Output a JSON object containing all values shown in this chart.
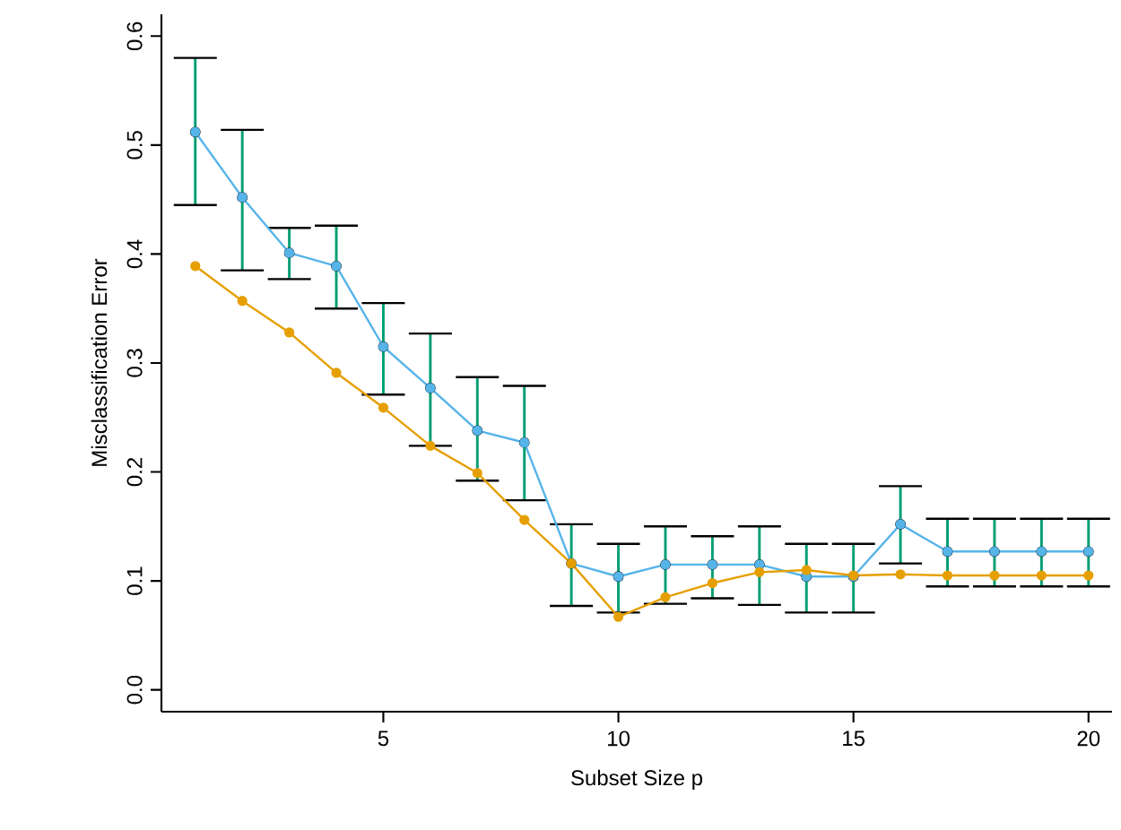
{
  "chart_data": {
    "type": "line",
    "xlabel": "Subset Size p",
    "ylabel": "Misclassification Error",
    "x": [
      1,
      2,
      3,
      4,
      5,
      6,
      7,
      8,
      9,
      10,
      11,
      12,
      13,
      14,
      15,
      16,
      17,
      18,
      19,
      20
    ],
    "series": [
      {
        "color": "#56b4e9",
        "values": [
          0.512,
          0.452,
          0.401,
          0.389,
          0.315,
          0.277,
          0.238,
          0.227,
          0.116,
          0.104,
          0.115,
          0.115,
          0.115,
          0.104,
          0.104,
          0.152,
          0.127,
          0.127,
          0.127,
          0.127
        ],
        "errors": [
          [
            0.445,
            0.58
          ],
          [
            0.385,
            0.514
          ],
          [
            0.377,
            0.424
          ],
          [
            0.35,
            0.426
          ],
          [
            0.271,
            0.355
          ],
          [
            0.224,
            0.327
          ],
          [
            0.192,
            0.287
          ],
          [
            0.174,
            0.279
          ],
          [
            0.077,
            0.152
          ],
          [
            0.071,
            0.134
          ],
          [
            0.079,
            0.15
          ],
          [
            0.084,
            0.141
          ],
          [
            0.078,
            0.15
          ],
          [
            0.071,
            0.134
          ],
          [
            0.071,
            0.134
          ],
          [
            0.116,
            0.187
          ],
          [
            0.095,
            0.157
          ],
          [
            0.095,
            0.157
          ],
          [
            0.095,
            0.157
          ],
          [
            0.095,
            0.157
          ]
        ]
      },
      {
        "color": "#e69f00",
        "values": [
          0.389,
          0.357,
          0.328,
          0.291,
          0.259,
          0.224,
          0.199,
          0.156,
          0.116,
          0.067,
          0.085,
          0.098,
          0.108,
          0.11,
          0.105,
          0.106,
          0.105,
          0.105,
          0.105,
          0.105
        ]
      }
    ],
    "xlim": [
      0.28,
      20.5
    ],
    "ylim": [
      -0.02,
      0.62
    ],
    "xticks": [
      5,
      10,
      15,
      20
    ],
    "yticks": [
      {
        "value": 0,
        "label": "0.0"
      },
      0.1,
      0.2,
      0.3,
      0.4,
      0.5,
      0.6
    ],
    "marker": "circle",
    "line_style": "solid",
    "grid": false
  }
}
